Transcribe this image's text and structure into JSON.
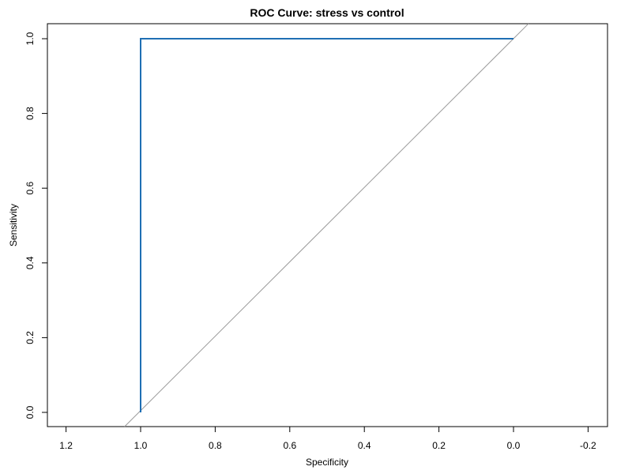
{
  "chart_data": {
    "type": "line",
    "title": "ROC Curve: stress vs control",
    "xlabel": "Specificity",
    "ylabel": "Sensitivity",
    "xlim": [
      1.25,
      -0.25
    ],
    "ylim": [
      0.0,
      1.0
    ],
    "x_ticks": [
      1.2,
      1.0,
      0.8,
      0.6,
      0.4,
      0.2,
      0.0,
      -0.2
    ],
    "x_tick_labels": [
      "1.2",
      "1.0",
      "0.8",
      "0.6",
      "0.4",
      "0.2",
      "0.0",
      "-0.2"
    ],
    "y_ticks": [
      0.0,
      0.2,
      0.4,
      0.6,
      0.8,
      1.0
    ],
    "y_tick_labels": [
      "0.0",
      "0.2",
      "0.4",
      "0.6",
      "0.8",
      "1.0"
    ],
    "series": [
      {
        "name": "ROC",
        "color": "#1f6fb4",
        "specificity": [
          1.0,
          1.0,
          0.0
        ],
        "sensitivity": [
          0.0,
          1.0,
          1.0
        ]
      }
    ],
    "reference_line": {
      "name": "chance diagonal",
      "color": "#9a9a9a",
      "intercept": 1,
      "slope": -1
    }
  }
}
